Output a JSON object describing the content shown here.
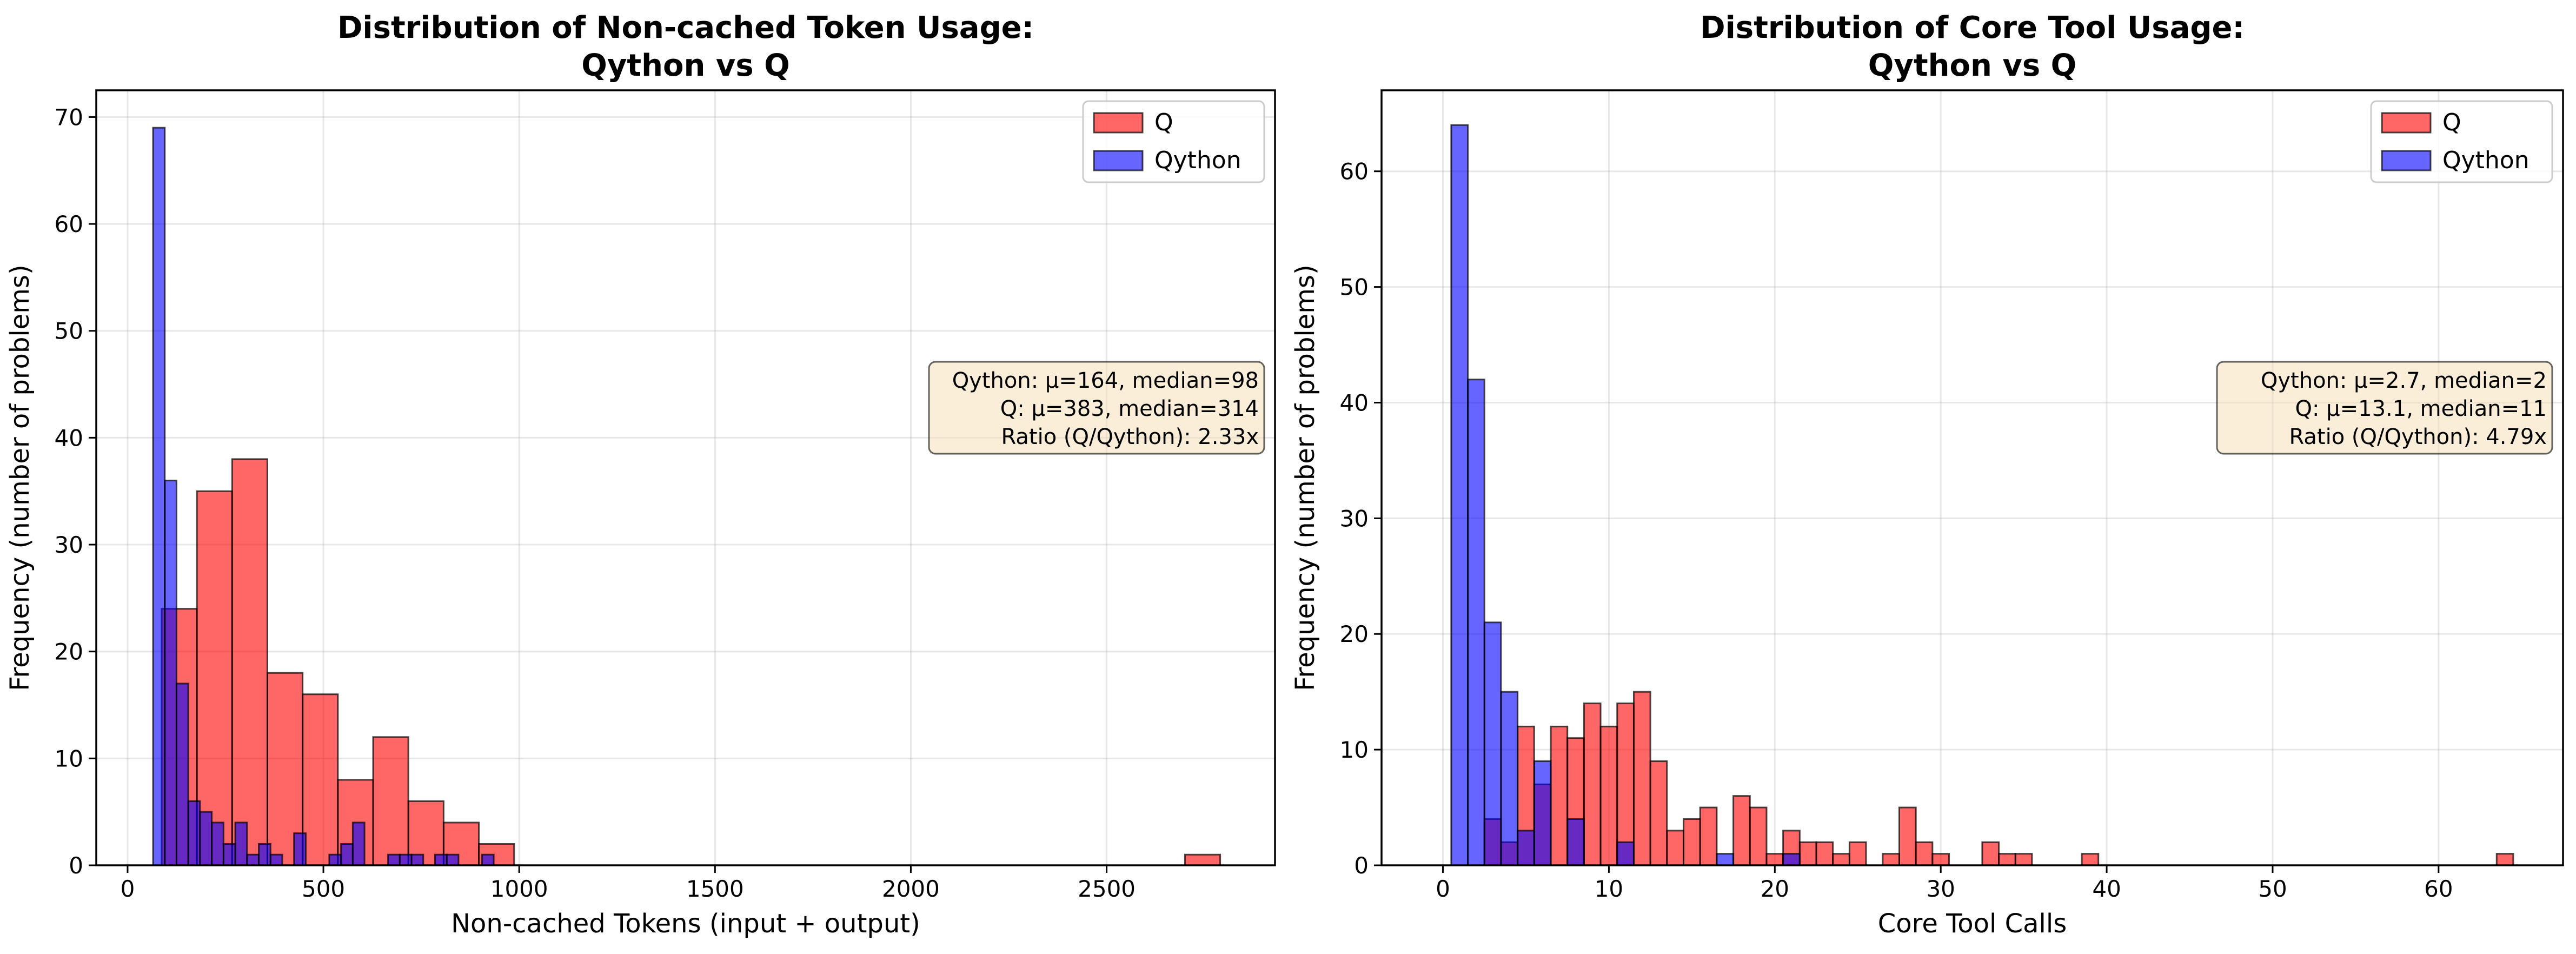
{
  "colors": {
    "q": "#ff0000",
    "qython": "#0000ff",
    "q_alpha": 0.6,
    "qython_alpha": 0.6,
    "stats_box_fill": "#f5deb3"
  },
  "chart_data": [
    {
      "type": "histogram",
      "title_lines": [
        "Distribution of Non-cached Token Usage:",
        "Qython vs Q"
      ],
      "xlabel": "Non-cached Tokens (input + output)",
      "ylabel": "Frequency (number of problems)",
      "xlim": [
        -80,
        2930
      ],
      "ylim": [
        0,
        72.5
      ],
      "xticks": [
        0,
        500,
        1000,
        1500,
        2000,
        2500
      ],
      "yticks": [
        0,
        10,
        20,
        30,
        40,
        50,
        60,
        70
      ],
      "grid": true,
      "legend_position": "upper right",
      "stats_text": [
        "Qython: μ=164, median=98",
        "Q: μ=383, median=314",
        "Ratio (Q/Qython): 2.33x"
      ],
      "series": [
        {
          "name": "Q",
          "color": "#ff0000",
          "bins": [
            {
              "x0": 87,
              "x1": 177,
              "count": 24
            },
            {
              "x0": 177,
              "x1": 267,
              "count": 35
            },
            {
              "x0": 267,
              "x1": 357,
              "count": 38
            },
            {
              "x0": 357,
              "x1": 447,
              "count": 18
            },
            {
              "x0": 447,
              "x1": 537,
              "count": 16
            },
            {
              "x0": 537,
              "x1": 627,
              "count": 8
            },
            {
              "x0": 627,
              "x1": 717,
              "count": 12
            },
            {
              "x0": 717,
              "x1": 807,
              "count": 6
            },
            {
              "x0": 807,
              "x1": 897,
              "count": 4
            },
            {
              "x0": 897,
              "x1": 987,
              "count": 2
            },
            {
              "x0": 2700,
              "x1": 2790,
              "count": 1
            }
          ]
        },
        {
          "name": "Qython",
          "color": "#0000ff",
          "bins": [
            {
              "x0": 65,
              "x1": 95,
              "count": 69
            },
            {
              "x0": 95,
              "x1": 125,
              "count": 36
            },
            {
              "x0": 125,
              "x1": 155,
              "count": 17
            },
            {
              "x0": 155,
              "x1": 185,
              "count": 6
            },
            {
              "x0": 185,
              "x1": 215,
              "count": 5
            },
            {
              "x0": 215,
              "x1": 245,
              "count": 4
            },
            {
              "x0": 245,
              "x1": 275,
              "count": 2
            },
            {
              "x0": 275,
              "x1": 305,
              "count": 4
            },
            {
              "x0": 305,
              "x1": 335,
              "count": 1
            },
            {
              "x0": 335,
              "x1": 365,
              "count": 2
            },
            {
              "x0": 365,
              "x1": 395,
              "count": 1
            },
            {
              "x0": 425,
              "x1": 455,
              "count": 3
            },
            {
              "x0": 515,
              "x1": 545,
              "count": 1
            },
            {
              "x0": 545,
              "x1": 575,
              "count": 2
            },
            {
              "x0": 575,
              "x1": 605,
              "count": 4
            },
            {
              "x0": 665,
              "x1": 695,
              "count": 1
            },
            {
              "x0": 695,
              "x1": 725,
              "count": 1
            },
            {
              "x0": 725,
              "x1": 755,
              "count": 1
            },
            {
              "x0": 785,
              "x1": 815,
              "count": 1
            },
            {
              "x0": 815,
              "x1": 845,
              "count": 1
            },
            {
              "x0": 905,
              "x1": 935,
              "count": 1
            }
          ]
        }
      ]
    },
    {
      "type": "histogram",
      "title_lines": [
        "Distribution of Core Tool Usage:",
        "Qython vs Q"
      ],
      "xlabel": "Core Tool Calls",
      "ylabel": "Frequency (number of problems)",
      "xlim": [
        -3.7,
        67.5
      ],
      "ylim": [
        0,
        67
      ],
      "xticks": [
        0,
        10,
        20,
        30,
        40,
        50,
        60
      ],
      "yticks": [
        0,
        10,
        20,
        30,
        40,
        50,
        60
      ],
      "grid": true,
      "legend_position": "upper right",
      "stats_text": [
        "Qython: μ=2.7, median=2",
        "Q: μ=13.1, median=11",
        "Ratio (Q/Qython): 4.79x"
      ],
      "series": [
        {
          "name": "Q",
          "color": "#ff0000",
          "bins": [
            {
              "x0": 2.5,
              "x1": 3.5,
              "count": 4
            },
            {
              "x0": 3.5,
              "x1": 4.5,
              "count": 2
            },
            {
              "x0": 4.5,
              "x1": 5.5,
              "count": 12
            },
            {
              "x0": 5.5,
              "x1": 6.5,
              "count": 7
            },
            {
              "x0": 6.5,
              "x1": 7.5,
              "count": 12
            },
            {
              "x0": 7.5,
              "x1": 8.5,
              "count": 11
            },
            {
              "x0": 8.5,
              "x1": 9.5,
              "count": 14
            },
            {
              "x0": 9.5,
              "x1": 10.5,
              "count": 12
            },
            {
              "x0": 10.5,
              "x1": 11.5,
              "count": 14
            },
            {
              "x0": 11.5,
              "x1": 12.5,
              "count": 15
            },
            {
              "x0": 12.5,
              "x1": 13.5,
              "count": 9
            },
            {
              "x0": 13.5,
              "x1": 14.5,
              "count": 3
            },
            {
              "x0": 14.5,
              "x1": 15.5,
              "count": 4
            },
            {
              "x0": 15.5,
              "x1": 16.5,
              "count": 5
            },
            {
              "x0": 17.5,
              "x1": 18.5,
              "count": 6
            },
            {
              "x0": 18.5,
              "x1": 19.5,
              "count": 5
            },
            {
              "x0": 19.5,
              "x1": 20.5,
              "count": 1
            },
            {
              "x0": 20.5,
              "x1": 21.5,
              "count": 3
            },
            {
              "x0": 21.5,
              "x1": 22.5,
              "count": 2
            },
            {
              "x0": 22.5,
              "x1": 23.5,
              "count": 2
            },
            {
              "x0": 23.5,
              "x1": 24.5,
              "count": 1
            },
            {
              "x0": 24.5,
              "x1": 25.5,
              "count": 2
            },
            {
              "x0": 26.5,
              "x1": 27.5,
              "count": 1
            },
            {
              "x0": 27.5,
              "x1": 28.5,
              "count": 5
            },
            {
              "x0": 28.5,
              "x1": 29.5,
              "count": 2
            },
            {
              "x0": 29.5,
              "x1": 30.5,
              "count": 1
            },
            {
              "x0": 32.5,
              "x1": 33.5,
              "count": 2
            },
            {
              "x0": 33.5,
              "x1": 34.5,
              "count": 1
            },
            {
              "x0": 34.5,
              "x1": 35.5,
              "count": 1
            },
            {
              "x0": 38.5,
              "x1": 39.5,
              "count": 1
            },
            {
              "x0": 63.5,
              "x1": 64.5,
              "count": 1
            }
          ]
        },
        {
          "name": "Qython",
          "color": "#0000ff",
          "bins": [
            {
              "x0": 0.5,
              "x1": 1.5,
              "count": 64
            },
            {
              "x0": 1.5,
              "x1": 2.5,
              "count": 42
            },
            {
              "x0": 2.5,
              "x1": 3.5,
              "count": 21
            },
            {
              "x0": 3.5,
              "x1": 4.5,
              "count": 15
            },
            {
              "x0": 4.5,
              "x1": 5.5,
              "count": 3
            },
            {
              "x0": 5.5,
              "x1": 6.5,
              "count": 9
            },
            {
              "x0": 7.5,
              "x1": 8.5,
              "count": 4
            },
            {
              "x0": 10.5,
              "x1": 11.5,
              "count": 2
            },
            {
              "x0": 16.5,
              "x1": 17.5,
              "count": 1
            },
            {
              "x0": 20.5,
              "x1": 21.5,
              "count": 1
            }
          ]
        }
      ]
    }
  ]
}
